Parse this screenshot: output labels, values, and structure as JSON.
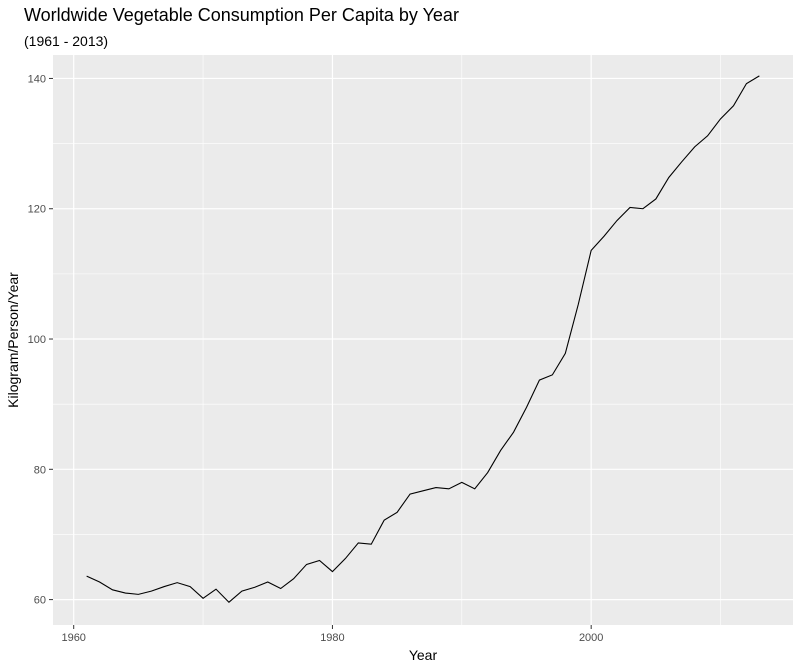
{
  "chart_data": {
    "type": "line",
    "title": "Worldwide Vegetable Consumption Per Capita by Year",
    "subtitle": "(1961 - 2013)",
    "xlabel": "Year",
    "ylabel": "Kilogram/Person/Year",
    "xlim": [
      1958.4,
      2015.6
    ],
    "ylim": [
      56.1,
      143.6
    ],
    "x_ticks": [
      1960,
      1980,
      2000
    ],
    "x_tick_labels": [
      "1960",
      "1980",
      "2000"
    ],
    "y_ticks": [
      60,
      80,
      100,
      120,
      140
    ],
    "y_tick_labels": [
      "60",
      "80",
      "100",
      "120",
      "140"
    ],
    "grid": true,
    "legend": "none",
    "colors": {
      "panel": "#ebebeb",
      "grid": "#ffffff",
      "line": "#000000"
    },
    "series": [
      {
        "x": [
          1961,
          1962,
          1963,
          1964,
          1965,
          1966,
          1967,
          1968,
          1969,
          1970,
          1971,
          1972,
          1973,
          1974,
          1975,
          1976,
          1977,
          1978,
          1979,
          1980,
          1981,
          1982,
          1983,
          1984,
          1985,
          1986,
          1987,
          1988,
          1989,
          1990,
          1991,
          1992,
          1993,
          1994,
          1995,
          1996,
          1997,
          1998,
          1999,
          2000,
          2001,
          2002,
          2003,
          2004,
          2005,
          2006,
          2007,
          2008,
          2009,
          2010,
          2011,
          2012,
          2013
        ],
        "values": [
          63.6,
          62.7,
          61.5,
          61.0,
          60.8,
          61.3,
          62.0,
          62.6,
          62.0,
          60.2,
          61.6,
          59.6,
          61.3,
          61.9,
          62.7,
          61.7,
          63.2,
          65.4,
          66.0,
          64.3,
          66.3,
          68.7,
          68.5,
          72.2,
          73.4,
          76.2,
          76.7,
          77.2,
          77.0,
          78.0,
          77.0,
          79.5,
          82.9,
          85.7,
          89.5,
          93.7,
          94.5,
          97.8,
          105.3,
          113.6,
          115.8,
          118.2,
          120.2,
          120.0,
          121.5,
          124.8,
          127.2,
          129.5,
          131.2,
          133.8,
          135.8,
          139.2,
          140.4
        ]
      }
    ]
  }
}
